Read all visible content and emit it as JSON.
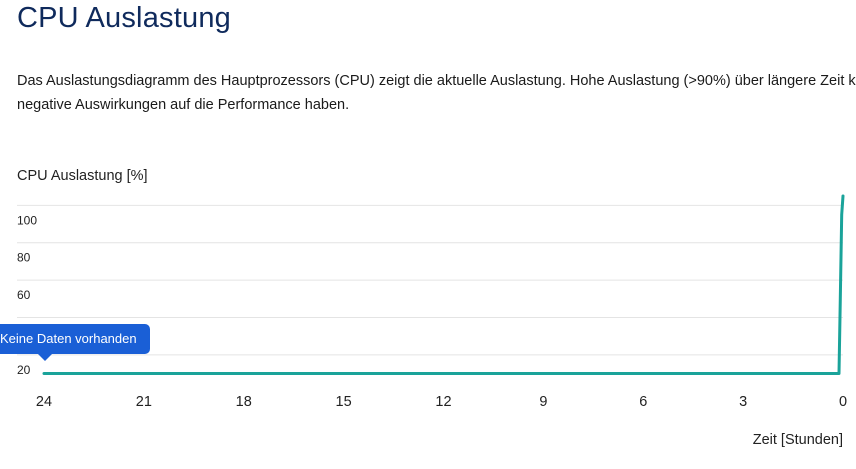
{
  "page": {
    "title": "CPU Auslastung",
    "description": "Das Auslastungsdiagramm des Hauptprozessors (CPU) zeigt die aktuelle Auslastung. Hohe Auslastung (>90%) über längere Zeit kann negative Auswirkungen auf die Performance haben."
  },
  "tooltip": {
    "text": "Keine Daten vorhanden"
  },
  "colors": {
    "title": "#0f2a5c",
    "line": "#1aa39a",
    "tooltip_bg": "#1a5fd6",
    "grid": "#e4e4e4"
  },
  "chart_data": {
    "type": "line",
    "title": "",
    "ylabel": "CPU Auslastung [%]",
    "xlabel": "Zeit [Stunden]",
    "ylim": [
      10,
      105
    ],
    "xlim": [
      24,
      0
    ],
    "y_ticks": [
      "100",
      "80",
      "60",
      "40",
      "20"
    ],
    "y_tick_values": [
      100,
      80,
      60,
      40,
      20
    ],
    "x_ticks": [
      "24",
      "21",
      "18",
      "15",
      "12",
      "9",
      "6",
      "3",
      "0"
    ],
    "x_tick_values": [
      24,
      21,
      18,
      15,
      12,
      9,
      6,
      3,
      0
    ],
    "series": [
      {
        "name": "CPU",
        "x": [
          24,
          0.12,
          0.08,
          0.04,
          0
        ],
        "y": [
          10,
          10,
          50,
          95,
          105
        ]
      }
    ]
  }
}
